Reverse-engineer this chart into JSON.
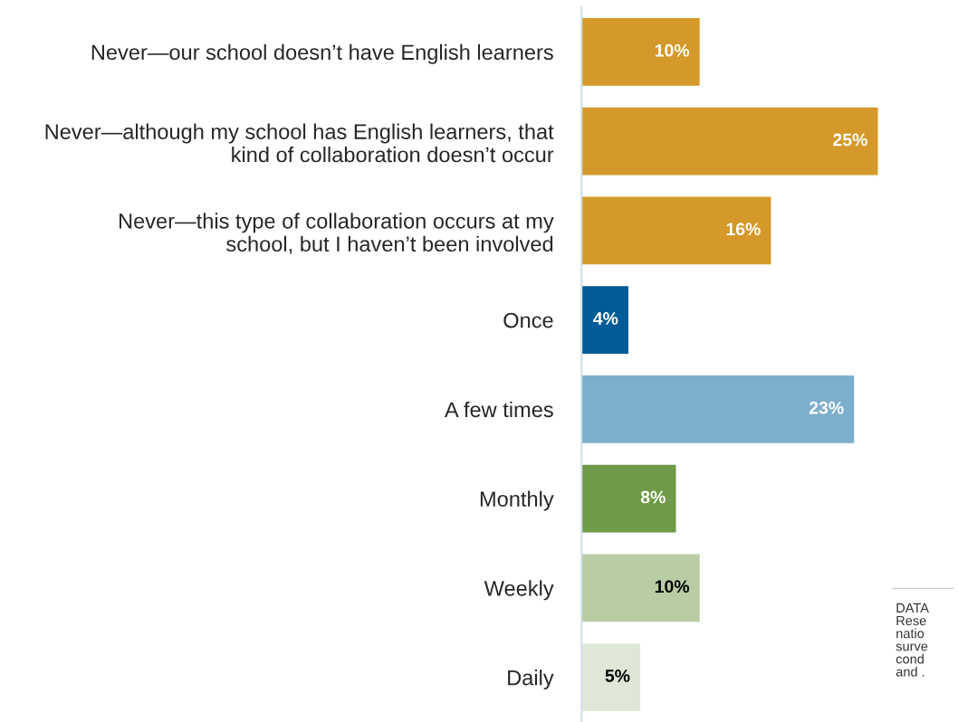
{
  "chart_data": {
    "type": "bar",
    "orientation": "horizontal",
    "categories": [
      "Never—our school doesn’t have English learners",
      "Never—although my school has English learners, that\nkind of collaboration doesn’t occur",
      "Never—this type of collaboration occurs at my\nschool, but I haven’t been involved",
      "Once",
      "A few times",
      "Monthly",
      "Weekly",
      "Daily"
    ],
    "values": [
      10,
      25,
      16,
      4,
      23,
      8,
      10,
      5
    ],
    "value_labels": [
      "10%",
      "25%",
      "16%",
      "4%",
      "23%",
      "8%",
      "10%",
      "5%"
    ],
    "colors": [
      "#d4992a",
      "#d4992a",
      "#d4992a",
      "#005b96",
      "#7eaecd",
      "#6f9a48",
      "#b9cda4",
      "#dfe8d6"
    ],
    "annotations": [
      "DATA\nRese\nnatio\nsurve\ncond\nand ."
    ],
    "tick_labels": "y",
    "grid": false,
    "legend": false
  }
}
